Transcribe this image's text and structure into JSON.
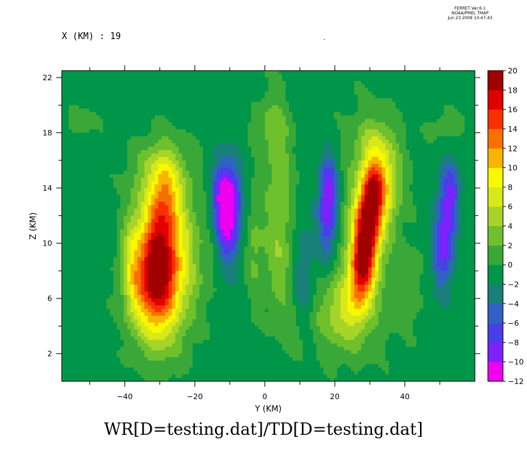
{
  "header": {
    "line1": "FERRET  Ver.6.1",
    "line2": "NOAA/PMEL TMAP",
    "line3": "Jun 23 2009 10:47:43"
  },
  "slice_label": "X (KM) : 19",
  "dot_label": ".",
  "chart_data": {
    "type": "heatmap",
    "title": "WR[D=testing.dat]/TD[D=testing.dat]",
    "xlabel": "Y (KM)",
    "ylabel": "Z (KM)",
    "xlim": [
      -58,
      60
    ],
    "ylim": [
      0,
      22.5
    ],
    "xticks": [
      -40,
      -20,
      0,
      20,
      40
    ],
    "yticks": [
      2,
      6,
      10,
      14,
      18,
      22
    ],
    "colorbar": {
      "levels": [
        -12,
        -10,
        -8,
        -6,
        -4,
        -2,
        0,
        2,
        4,
        6,
        8,
        10,
        12,
        14,
        16,
        18,
        20
      ],
      "colors": [
        "#ee00ee",
        "#8020ff",
        "#4a3ee8",
        "#2f62c4",
        "#188078",
        "#00964a",
        "#3aa838",
        "#6ec02c",
        "#a6d42a",
        "#d8e818",
        "#f8f800",
        "#f8b400",
        "#f87000",
        "#f83000",
        "#e00000",
        "#a00000"
      ]
    },
    "features": [
      {
        "x": -30,
        "z": 8.5,
        "sx": 4.2,
        "sz": 3.6,
        "amp": 19
      },
      {
        "x": -34,
        "z": 7.0,
        "sx": 4.5,
        "sz": 2.4,
        "amp": 6
      },
      {
        "x": -28.5,
        "z": 13.5,
        "sx": 3.0,
        "sz": 2.0,
        "amp": 6
      },
      {
        "x": -38,
        "z": 9.0,
        "sx": 2.0,
        "sz": 3.0,
        "amp": 4
      },
      {
        "x": -22,
        "z": 9.0,
        "sx": 3.5,
        "sz": 4.0,
        "amp": 4
      },
      {
        "x": -30,
        "z": 15.5,
        "sx": 6.0,
        "sz": 1.5,
        "amp": 3
      },
      {
        "x": -11,
        "z": 12.0,
        "sx": 2.6,
        "sz": 2.4,
        "amp": -10
      },
      {
        "x": -11,
        "z": 13.5,
        "sx": 3.0,
        "sz": 1.8,
        "amp": -5
      },
      {
        "x": 18,
        "z": 12.0,
        "sx": 1.9,
        "sz": 2.3,
        "amp": -8
      },
      {
        "x": 18.5,
        "z": 14.5,
        "sx": 2.0,
        "sz": 1.5,
        "amp": -4
      },
      {
        "x": 11,
        "z": 7.5,
        "sx": 2.0,
        "sz": 3.0,
        "amp": -3.5
      },
      {
        "x": 52,
        "z": 11.5,
        "sx": 2.0,
        "sz": 2.5,
        "amp": -7
      },
      {
        "x": 53.5,
        "z": 14.0,
        "sx": 1.8,
        "sz": 1.3,
        "amp": -4
      },
      {
        "x": 50,
        "z": 9.0,
        "sx": 1.8,
        "sz": 2.0,
        "amp": -4
      },
      {
        "x": 29,
        "z": 10.5,
        "sx": 2.5,
        "sz": 2.4,
        "amp": 15
      },
      {
        "x": 31,
        "z": 13.5,
        "sx": 2.2,
        "sz": 1.8,
        "amp": 10
      },
      {
        "x": 27,
        "z": 7.8,
        "sx": 2.3,
        "sz": 2.0,
        "amp": 9
      },
      {
        "x": 34,
        "z": 14.5,
        "sx": 3.5,
        "sz": 2.2,
        "amp": 7
      },
      {
        "x": 22,
        "z": 5.0,
        "sx": 5.0,
        "sz": 2.0,
        "amp": 6
      },
      {
        "x": 29,
        "z": 11.0,
        "sx": 5.5,
        "sz": 5.0,
        "amp": 4
      },
      {
        "x": 4,
        "z": 14.0,
        "sx": 3.0,
        "sz": 4.5,
        "amp": 4
      },
      {
        "x": -3,
        "z": 10.0,
        "sx": 2.0,
        "sz": 3.0,
        "amp": 3
      },
      {
        "x": 4,
        "z": 8.0,
        "sx": 3.0,
        "sz": 2.5,
        "amp": 2.5
      },
      {
        "x": 1,
        "z": 18.5,
        "sx": 3.5,
        "sz": 1.2,
        "amp": 2.5
      },
      {
        "x": 31,
        "z": 17.5,
        "sx": 4.0,
        "sz": 1.2,
        "amp": 2.5
      },
      {
        "x": 9,
        "z": 3.5,
        "sx": 3.0,
        "sz": 1.5,
        "amp": 2
      },
      {
        "x": -52,
        "z": 18.8,
        "sx": 3.0,
        "sz": 0.7,
        "amp": 2.2
      },
      {
        "x": 52,
        "z": 18.5,
        "sx": 4.0,
        "sz": 0.8,
        "amp": 2
      },
      {
        "x": 41,
        "z": 6.5,
        "sx": 3.0,
        "sz": 2.0,
        "amp": 2
      },
      {
        "x": -15,
        "z": 10.0,
        "sx": 2.0,
        "sz": 2.5,
        "amp": 2
      }
    ]
  }
}
